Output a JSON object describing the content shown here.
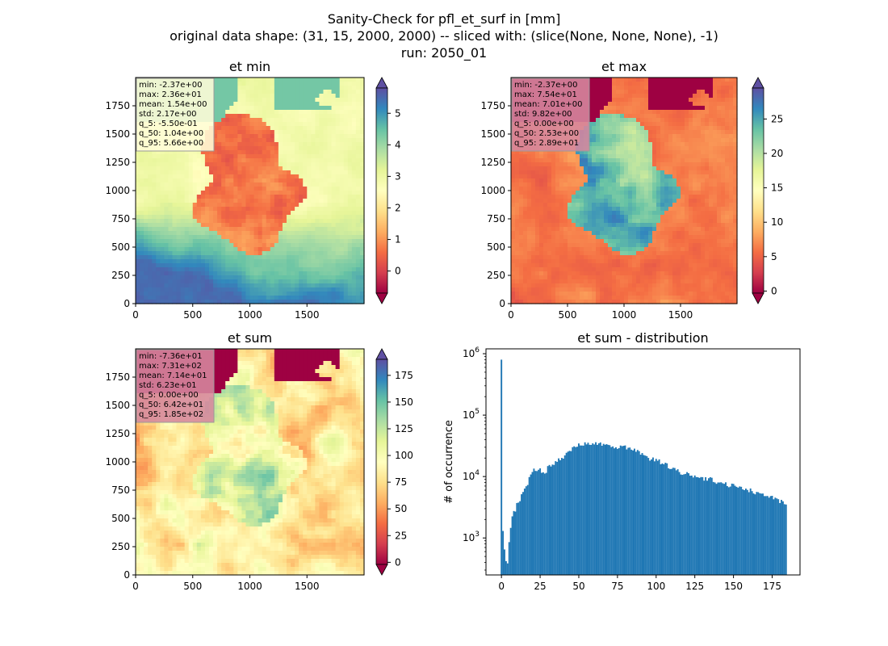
{
  "figure": {
    "suptitle_lines": [
      "Sanity-Check for pfl_et_surf in [mm]",
      "original data shape: (31, 15, 2000, 2000) -- sliced with: (slice(None, None, None), -1)",
      "run: 2050_01"
    ]
  },
  "colormap": {
    "name": "Spectral",
    "stops": [
      "#9e0142",
      "#d53e4f",
      "#f46d43",
      "#fdae61",
      "#fee08b",
      "#ffffbf",
      "#e6f598",
      "#abdda4",
      "#66c2a5",
      "#3288bd",
      "#5e4fa2"
    ],
    "map_ocean_low": "#9e0142"
  },
  "chart_data": [
    {
      "type": "heatmap",
      "title": "et min",
      "xlim": [
        0,
        2000
      ],
      "ylim": [
        0,
        2000
      ],
      "xticks": [
        0,
        500,
        1000,
        1500
      ],
      "yticks": [
        0,
        250,
        500,
        750,
        1000,
        1250,
        1500,
        1750
      ],
      "colorbar": {
        "vmin": -0.7,
        "vmax": 5.8,
        "ticks": [
          0,
          1,
          2,
          3,
          4,
          5
        ],
        "extend": "both"
      },
      "stats": [
        "min: -2.37e+00",
        "max: 2.36e+01",
        "mean: 1.54e+00",
        "std: 2.17e+00",
        "q_5: -5.50e-01",
        "q_50: 1.04e+00",
        "q_95: 5.66e+00"
      ],
      "stats_box_color": "#fffdd8"
    },
    {
      "type": "heatmap",
      "title": "et max",
      "xlim": [
        0,
        2000
      ],
      "ylim": [
        0,
        2000
      ],
      "xticks": [
        0,
        500,
        1000,
        1500
      ],
      "yticks": [
        0,
        250,
        500,
        750,
        1000,
        1250,
        1500,
        1750
      ],
      "colorbar": {
        "vmin": -0.3,
        "vmax": 29.5,
        "ticks": [
          0,
          5,
          10,
          15,
          20,
          25
        ],
        "extend": "both"
      },
      "stats": [
        "min: -2.37e+00",
        "max: 7.54e+01",
        "mean: 7.01e+00",
        "std: 9.82e+00",
        "q_5: 0.00e+00",
        "q_50: 2.53e+00",
        "q_95: 2.89e+01"
      ],
      "stats_box_color": "#d6889e"
    },
    {
      "type": "heatmap",
      "title": "et sum",
      "xlim": [
        0,
        2000
      ],
      "ylim": [
        0,
        2000
      ],
      "xticks": [
        0,
        500,
        1000,
        1500
      ],
      "yticks": [
        0,
        250,
        500,
        750,
        1000,
        1250,
        1500,
        1750
      ],
      "colorbar": {
        "vmin": -2,
        "vmax": 190,
        "ticks": [
          0,
          25,
          50,
          75,
          100,
          125,
          150,
          175
        ],
        "extend": "both"
      },
      "stats": [
        "min: -7.36e+01",
        "max: 7.31e+02",
        "mean: 7.14e+01",
        "std: 6.23e+01",
        "q_5: 0.00e+00",
        "q_50: 6.42e+01",
        "q_95: 1.85e+02"
      ],
      "stats_box_color": "#d6889e"
    },
    {
      "type": "bar",
      "title": "et sum - distribution",
      "ylabel": "# of occurrence",
      "yscale": "log",
      "xlim": [
        -10,
        193
      ],
      "ylim": [
        250,
        1200000
      ],
      "xticks": [
        0,
        25,
        50,
        75,
        100,
        125,
        150,
        175
      ],
      "yticks": [
        {
          "value": 1000,
          "base": "10",
          "exp": "3"
        },
        {
          "value": 10000,
          "base": "10",
          "exp": "4"
        },
        {
          "value": 100000,
          "base": "10",
          "exp": "5"
        },
        {
          "value": 1000000,
          "base": "10",
          "exp": "6"
        }
      ],
      "bar_color": "#1f77b4",
      "bin_width": 1,
      "series": [
        {
          "x": [
            0,
            1,
            2,
            3,
            4,
            5,
            6,
            7,
            8,
            9,
            10,
            12,
            15,
            18,
            20,
            22,
            25,
            28,
            30,
            33,
            36,
            40,
            43,
            46,
            50,
            53,
            56,
            60,
            63,
            66,
            70,
            73,
            76,
            80,
            83,
            86,
            90,
            95,
            100,
            105,
            110,
            115,
            120,
            125,
            130,
            135,
            140,
            145,
            150,
            155,
            160,
            165,
            170,
            175,
            180,
            184
          ],
          "values": [
            800000,
            1300,
            650,
            420,
            380,
            900,
            1500,
            2300,
            3000,
            2600,
            3500,
            4200,
            6000,
            9000,
            13000,
            12000,
            13000,
            11000,
            14000,
            16000,
            19000,
            20000,
            24000,
            28000,
            32000,
            34000,
            36000,
            35000,
            34000,
            33000,
            31000,
            30000,
            31000,
            30000,
            29000,
            27000,
            23000,
            20000,
            19000,
            16000,
            14000,
            12000,
            11000,
            10000,
            9500,
            9000,
            8000,
            7500,
            7000,
            6500,
            6000,
            5500,
            5000,
            4500,
            4000,
            3800
          ]
        }
      ]
    }
  ]
}
